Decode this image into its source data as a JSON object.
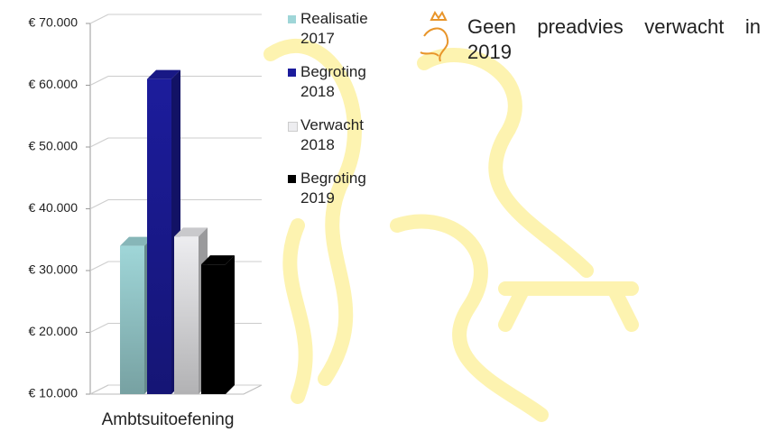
{
  "chart_data": {
    "type": "bar3d",
    "categories": [
      "Ambtsuitoefening"
    ],
    "series": [
      {
        "name": "Realisatie 2017",
        "color": "#9fd6d8",
        "values": [
          34000
        ]
      },
      {
        "name": "Begroting 2018",
        "color": "#1c1c9c",
        "values": [
          61000
        ]
      },
      {
        "name": "Verwacht 2018",
        "color": "#ededf0",
        "values": [
          35500
        ]
      },
      {
        "name": "Begroting 2019",
        "color": "#000000",
        "values": [
          31000
        ]
      }
    ],
    "ylim": [
      10000,
      70000
    ],
    "yticks": [
      {
        "value": 10000,
        "label": "€ 10.000"
      },
      {
        "value": 20000,
        "label": "€ 20.000"
      },
      {
        "value": 30000,
        "label": "€ 30.000"
      },
      {
        "value": 40000,
        "label": "€ 40.000"
      },
      {
        "value": 50000,
        "label": "€ 50.000"
      },
      {
        "value": 60000,
        "label": "€ 60.000"
      },
      {
        "value": 70000,
        "label": "€ 70.000"
      }
    ],
    "grid": true,
    "annotation": "Geen preadvies verwacht in 2019"
  }
}
